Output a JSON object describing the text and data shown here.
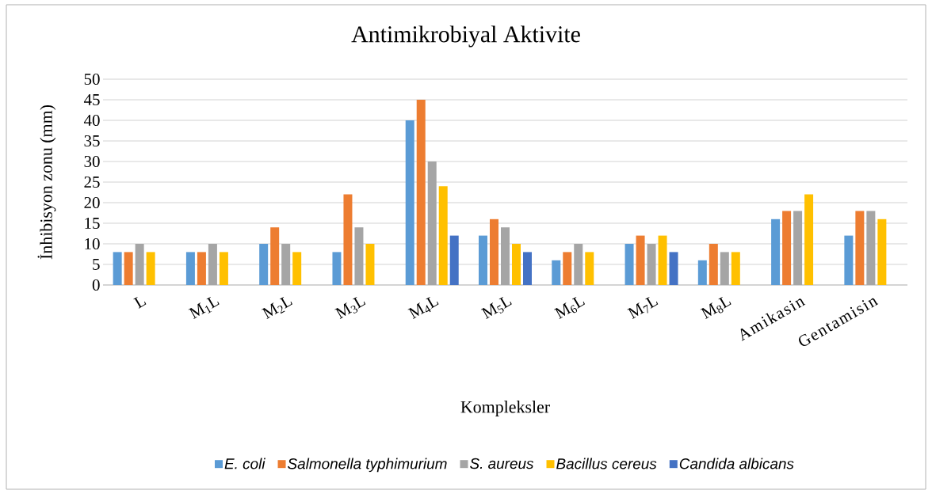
{
  "chart_data": {
    "type": "bar",
    "title": "Antimikrobiyal Aktivite",
    "xlabel": "Kompleksler",
    "ylabel": "İnhibisyon zonu (mm)",
    "categories": [
      "L",
      "M$_{1}$L",
      "M$_{2}$L",
      "M$_{3}$L",
      "M$_{4}$L",
      "M$_{5}$L",
      "M$_{6}$L",
      "M$_{7}$L",
      "M$_{8}$L",
      "Amikasin",
      "Gentamisin"
    ],
    "series": [
      {
        "name": "E. coli",
        "color": "#5b9bd5",
        "values": [
          8,
          8,
          10,
          8,
          40,
          12,
          6,
          10,
          6,
          16,
          12
        ]
      },
      {
        "name": "Salmonella typhimurium",
        "color": "#ed7d31",
        "values": [
          8,
          8,
          14,
          22,
          45,
          16,
          8,
          12,
          10,
          18,
          18
        ]
      },
      {
        "name": "S. aureus",
        "color": "#a5a5a5",
        "values": [
          10,
          10,
          10,
          14,
          30,
          14,
          10,
          10,
          8,
          18,
          18
        ]
      },
      {
        "name": "Bacillus cereus",
        "color": "#ffc000",
        "values": [
          8,
          8,
          8,
          10,
          24,
          10,
          8,
          12,
          8,
          22,
          16
        ]
      },
      {
        "name": "Candida albicans",
        "color": "#4472c4",
        "values": [
          null,
          null,
          null,
          null,
          12,
          8,
          null,
          8,
          null,
          null,
          null
        ]
      }
    ],
    "ylim": [
      0,
      50
    ],
    "yticks": [
      0,
      5,
      10,
      15,
      20,
      25,
      30,
      35,
      40,
      45,
      50
    ],
    "grid": "y",
    "legend": "bottom"
  }
}
